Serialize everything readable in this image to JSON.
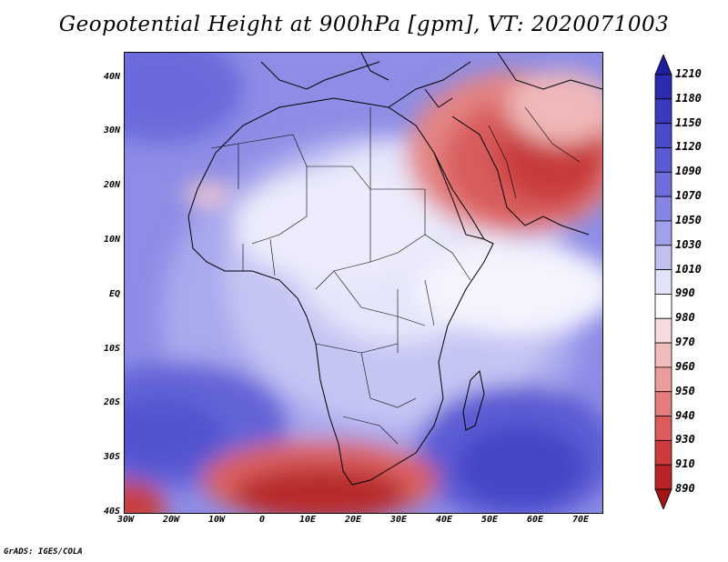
{
  "title": "Geopotential Height at 900hPa [gpm], VT: 2020071003",
  "credit": "GrADS: IGES/COLA",
  "map": {
    "lat_labels": [
      "40N",
      "30N",
      "20N",
      "10N",
      "EQ",
      "10S",
      "20S",
      "30S",
      "40S"
    ],
    "lon_labels": [
      "30W",
      "20W",
      "10W",
      "0",
      "10E",
      "20E",
      "30E",
      "40E",
      "50E",
      "60E",
      "70E"
    ]
  },
  "colorbar": {
    "levels": [
      "1210",
      "1180",
      "1150",
      "1120",
      "1090",
      "1070",
      "1050",
      "1030",
      "1010",
      "990",
      "980",
      "970",
      "960",
      "950",
      "940",
      "930",
      "910",
      "890"
    ],
    "colors": [
      "#1f1f9e",
      "#2b2bb0",
      "#3a3abf",
      "#4a4acb",
      "#5a5ad5",
      "#6e6edd",
      "#8585e4",
      "#a0a0ec",
      "#c0c0f3",
      "#e2e2fa",
      "#ffffff",
      "#f8dcdc",
      "#f2bcbc",
      "#eb9c9c",
      "#e47c7c",
      "#dc5c5c",
      "#cc3c3c",
      "#b82424",
      "#a01414"
    ]
  }
}
